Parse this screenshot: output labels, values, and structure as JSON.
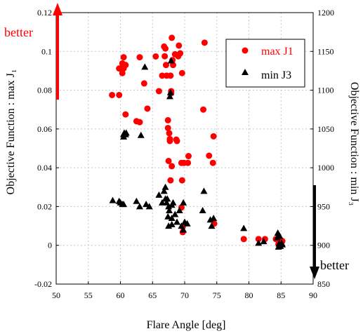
{
  "chart_data": {
    "type": "scatter",
    "xlabel": "Flare Angle [deg]",
    "ylabel": "Objective Function : max J₁",
    "y2label": "Objective Function : min J₃",
    "xlim": [
      50,
      90
    ],
    "ylim": [
      -0.02,
      0.12
    ],
    "y2lim": [
      850,
      1200
    ],
    "x_ticks": [
      "50",
      "55",
      "60",
      "65",
      "70",
      "75",
      "80",
      "85",
      "90"
    ],
    "y_ticks": [
      "-0.02",
      "0",
      "0.02",
      "0.04",
      "0.06",
      "0.08",
      "0.1",
      "0.12"
    ],
    "y2_ticks": [
      "850",
      "900",
      "950",
      "1000",
      "1050",
      "1100",
      "1150",
      "1200"
    ],
    "grid": true,
    "legend_position": "top-right",
    "annotations": [
      {
        "text": "better",
        "color": "#ff0000",
        "arrow": "up"
      },
      {
        "text": "better",
        "color": "#000000",
        "arrow": "down"
      }
    ],
    "series": [
      {
        "name": "max J1",
        "marker": "circle",
        "color": "#ff0000",
        "axis": "left",
        "points": [
          [
            58.7,
            0.0775
          ],
          [
            59.8,
            0.0775
          ],
          [
            59.8,
            0.0912
          ],
          [
            60.3,
            0.0938
          ],
          [
            60.3,
            0.0888
          ],
          [
            60.5,
            0.0912
          ],
          [
            60.5,
            0.097
          ],
          [
            60.8,
            0.093
          ],
          [
            60.8,
            0.0675
          ],
          [
            62.5,
            0.064
          ],
          [
            63.0,
            0.0635
          ],
          [
            63.0,
            0.097
          ],
          [
            63.7,
            0.0835
          ],
          [
            64.2,
            0.0705
          ],
          [
            65.5,
            0.0974
          ],
          [
            66.0,
            0.0795
          ],
          [
            66.5,
            0.0875
          ],
          [
            66.8,
            0.1025
          ],
          [
            66.9,
            0.0975
          ],
          [
            67.0,
            0.1015
          ],
          [
            67.1,
            0.093
          ],
          [
            67.2,
            0.0875
          ],
          [
            67.4,
            0.0645
          ],
          [
            67.4,
            0.0605
          ],
          [
            67.5,
            0.0435
          ],
          [
            67.6,
            0.0578
          ],
          [
            67.7,
            0.0548
          ],
          [
            67.7,
            0.0538
          ],
          [
            67.8,
            0.0335
          ],
          [
            67.8,
            0.0875
          ],
          [
            67.9,
            0.0795
          ],
          [
            67.9,
            0.0785
          ],
          [
            68.0,
            0.0408
          ],
          [
            68.0,
            0.107
          ],
          [
            68.1,
            0.0955
          ],
          [
            68.2,
            0.093
          ],
          [
            68.5,
            0.0985
          ],
          [
            68.7,
            0.0545
          ],
          [
            68.8,
            0.0538
          ],
          [
            69.0,
            0.0975
          ],
          [
            69.1,
            0.103
          ],
          [
            69.3,
            0.099
          ],
          [
            69.5,
            0.0425
          ],
          [
            69.5,
            0.0195
          ],
          [
            69.6,
            0.0888
          ],
          [
            69.6,
            0.0335
          ],
          [
            69.7,
            0.0095
          ],
          [
            69.7,
            0.0068
          ],
          [
            69.9,
            0.0425
          ],
          [
            70.5,
            0.0425
          ],
          [
            70.6,
            0.046
          ],
          [
            72.9,
            0.07
          ],
          [
            73.1,
            0.1045
          ],
          [
            73.8,
            0.0462
          ],
          [
            74.4,
            0.0425
          ],
          [
            74.5,
            0.0562
          ],
          [
            74.6,
            0.0112
          ],
          [
            79.2,
            0.0032
          ],
          [
            81.5,
            0.0032
          ],
          [
            82.5,
            0.0032
          ],
          [
            84.2,
            0.0032
          ],
          [
            84.6,
            0.0005
          ],
          [
            84.8,
            0.0015
          ],
          [
            85.0,
            0.0012
          ],
          [
            85.2,
            0.0022
          ]
        ]
      },
      {
        "name": "min J3",
        "marker": "triangle",
        "color": "#000000",
        "axis": "right",
        "points": [
          [
            58.8,
            958
          ],
          [
            59.8,
            957
          ],
          [
            60.0,
            955
          ],
          [
            60.3,
            953
          ],
          [
            60.5,
            953
          ],
          [
            60.5,
            1043
          ],
          [
            60.5,
            1040
          ],
          [
            60.6,
            1045
          ],
          [
            60.8,
            1043
          ],
          [
            60.9,
            1045
          ],
          [
            62.5,
            957
          ],
          [
            63.0,
            950
          ],
          [
            63.2,
            1042
          ],
          [
            63.8,
            1130
          ],
          [
            64.0,
            953
          ],
          [
            64.5,
            950
          ],
          [
            66.0,
            965
          ],
          [
            66.5,
            955
          ],
          [
            66.8,
            970
          ],
          [
            67.0,
            960
          ],
          [
            67.0,
            975
          ],
          [
            67.2,
            955
          ],
          [
            67.3,
            960
          ],
          [
            67.4,
            937
          ],
          [
            67.5,
            950
          ],
          [
            67.5,
            925
          ],
          [
            67.6,
            945
          ],
          [
            67.7,
            1092
          ],
          [
            67.8,
            1097
          ],
          [
            67.9,
            1138
          ],
          [
            68.0,
            952
          ],
          [
            68.0,
            927
          ],
          [
            68.0,
            935
          ],
          [
            68.2,
            955
          ],
          [
            68.5,
            940
          ],
          [
            68.8,
            930
          ],
          [
            69.2,
            945
          ],
          [
            69.5,
            925
          ],
          [
            69.8,
            955
          ],
          [
            69.8,
            920
          ],
          [
            70.0,
            930
          ],
          [
            70.4,
            928
          ],
          [
            72.8,
            945
          ],
          [
            73.0,
            970
          ],
          [
            74.0,
            933
          ],
          [
            74.2,
            925
          ],
          [
            74.5,
            935
          ],
          [
            79.2,
            922
          ],
          [
            81.5,
            903
          ],
          [
            82.3,
            905
          ],
          [
            84.4,
            910
          ],
          [
            84.5,
            916
          ],
          [
            84.6,
            898
          ],
          [
            84.7,
            902
          ],
          [
            84.8,
            912
          ],
          [
            84.9,
            899
          ],
          [
            85.1,
            903
          ],
          [
            85.2,
            901
          ]
        ]
      }
    ]
  }
}
